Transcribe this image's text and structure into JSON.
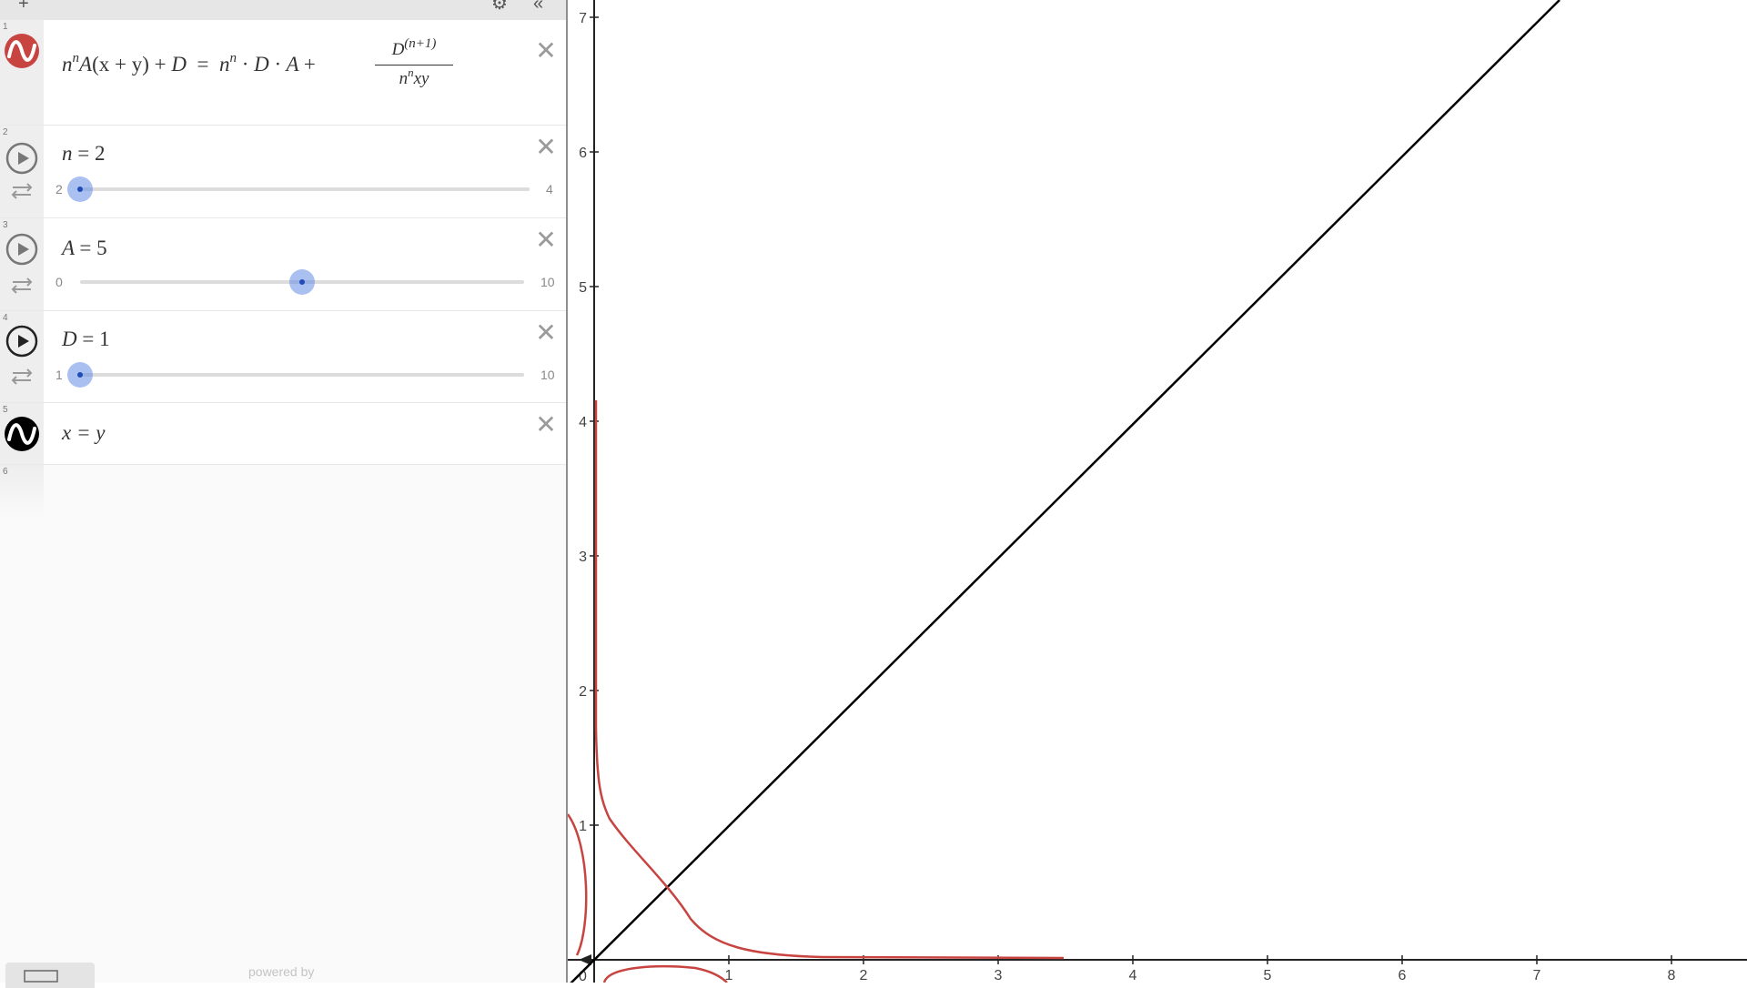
{
  "toolbar": {
    "add_icon": "plus-icon",
    "settings_icon": "gear-icon",
    "collapse_icon": "double-chevron-left-icon"
  },
  "expressions": [
    {
      "index": "1",
      "type": "equation",
      "color": "#c74440",
      "lhs": {
        "n": "n",
        "nexp": "n",
        "A": "A",
        "xy": "(x + y)",
        "plus": "+",
        "D": "D"
      },
      "eq": "=",
      "rhs": {
        "n": "n",
        "nexp": "n",
        "dot": "·",
        "D": "D",
        "A": "A",
        "plus": "+",
        "num_base": "D",
        "num_exp": "(n+1)",
        "den_base": "n",
        "den_exp": "n",
        "den_tail": "xy"
      }
    },
    {
      "index": "2",
      "type": "slider",
      "name": "n",
      "eq": "=",
      "value": "2",
      "min": "2",
      "max": "4",
      "fraction": 0.0
    },
    {
      "index": "3",
      "type": "slider",
      "name": "A",
      "eq": "=",
      "value": "5",
      "min": "0",
      "max": "10",
      "fraction": 0.5
    },
    {
      "index": "4",
      "type": "slider",
      "name": "D",
      "eq": "=",
      "value": "1",
      "min": "1",
      "max": "10",
      "fraction": 0.0
    },
    {
      "index": "5",
      "type": "equation",
      "color": "#000000",
      "text": "x = y"
    },
    {
      "index": "6",
      "type": "empty"
    }
  ],
  "footer": {
    "keyboard_icon": "keyboard-icon",
    "powered_by": "powered by"
  },
  "graph": {
    "x_ticks": [
      "1",
      "2",
      "3",
      "4",
      "5",
      "6",
      "7",
      "8"
    ],
    "y_ticks": [
      "1",
      "2",
      "3",
      "4",
      "5",
      "6",
      "7"
    ],
    "origin_label": "0",
    "curve_color": "#c74440",
    "line_color": "#000000"
  }
}
